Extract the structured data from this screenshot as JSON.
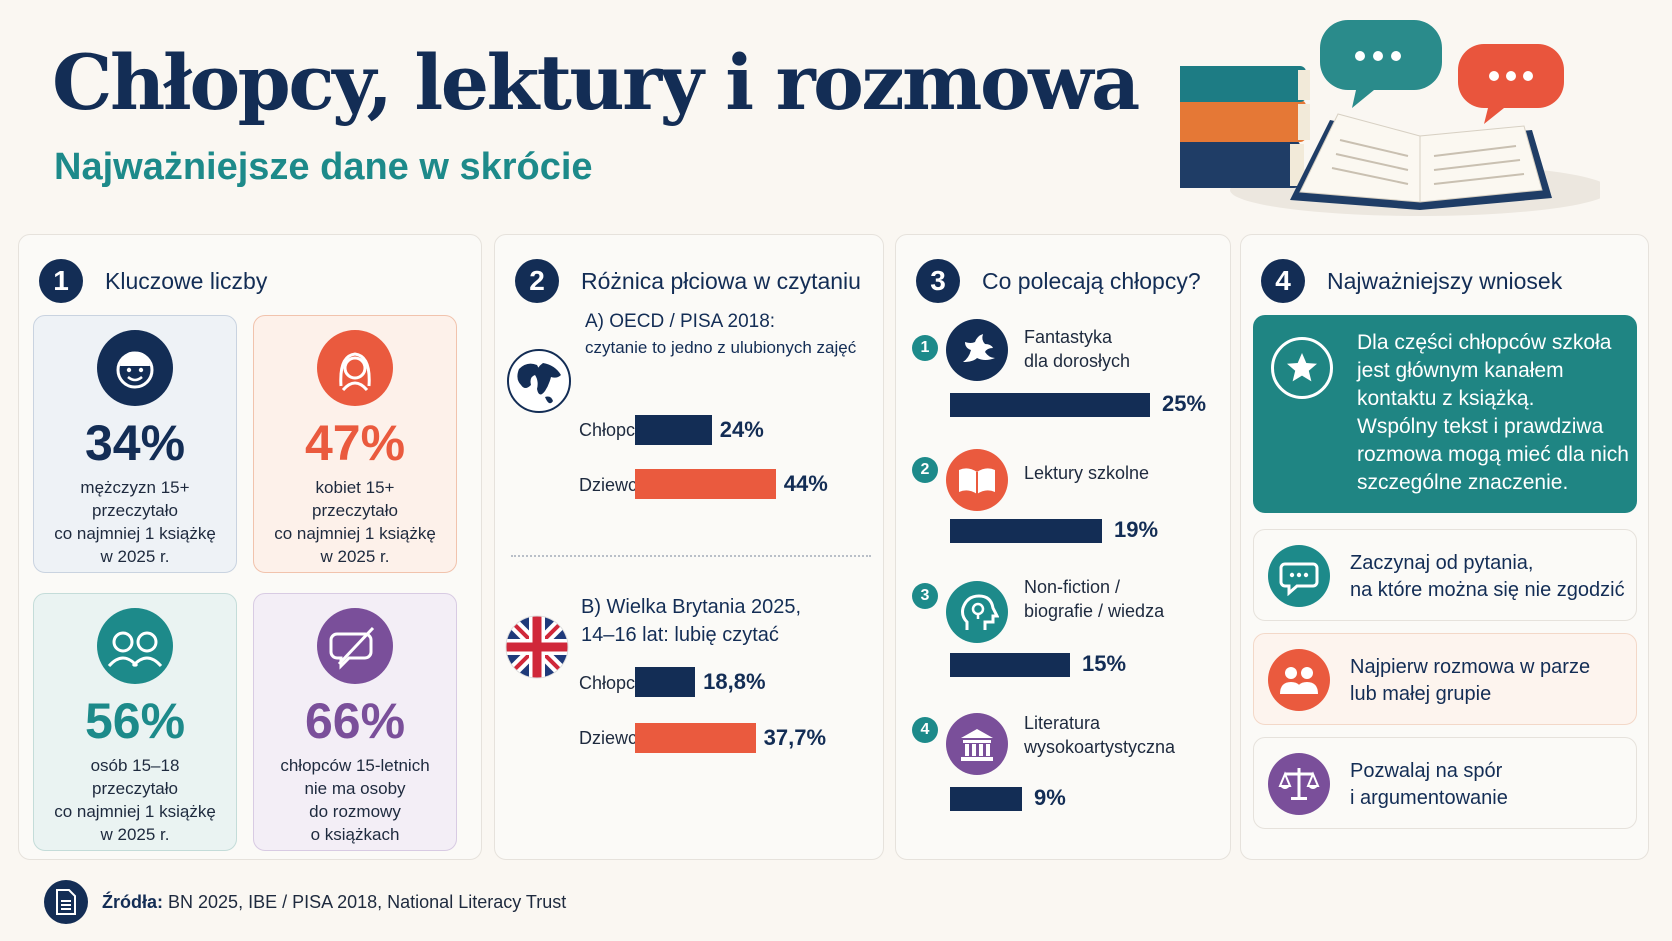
{
  "header": {
    "title": "Chłopcy, lektury i rozmowa",
    "subtitle": "Najważniejsze dane w skrócie"
  },
  "colors": {
    "navy": "#132d55",
    "teal": "#1d8a8a",
    "orange": "#ea5a3e",
    "purple": "#7a4f9a",
    "background": "#faf7f2"
  },
  "panel1": {
    "number": "1",
    "title": "Kluczowe liczby",
    "cards": [
      {
        "icon": "man-face-icon",
        "value": "34%",
        "color": "#132d55",
        "lines": [
          "mężczyzn 15+",
          "przeczytało",
          "co najmniej 1 książkę",
          "w 2025 r."
        ]
      },
      {
        "icon": "woman-face-icon",
        "value": "47%",
        "color": "#ea5a3e",
        "lines": [
          "kobiet 15+",
          "przeczytało",
          "co najmniej 1 książkę",
          "w 2025 r."
        ]
      },
      {
        "icon": "two-teens-icon",
        "value": "56%",
        "color": "#1d8a8a",
        "lines": [
          "osób 15–18",
          "przeczytało",
          "co najmniej 1 książkę",
          "w 2025 r."
        ]
      },
      {
        "icon": "no-conversation-icon",
        "value": "66%",
        "color": "#7a4f9a",
        "lines": [
          "chłopców 15-letnich",
          "nie ma osoby",
          "do rozmowy",
          "o książkach"
        ]
      }
    ]
  },
  "panel2": {
    "number": "2",
    "title": "Różnica płciowa w czytaniu",
    "sections": [
      {
        "icon": "globe-icon",
        "title_lines": [
          "A) OECD / PISA 2018:",
          "czytanie to jedno z ulubionych zajęć"
        ],
        "rows": [
          {
            "label": "Chłopcy",
            "value": 24,
            "display": "24%"
          },
          {
            "label": "Dziewczęta",
            "value": 44,
            "display": "44%"
          }
        ]
      },
      {
        "icon": "uk-flag-icon",
        "title_lines": [
          "B) Wielka Brytania 2025,",
          "14–16 lat: lubię czytać"
        ],
        "rows": [
          {
            "label": "Chłopcy",
            "value": 18.8,
            "display": "18,8%"
          },
          {
            "label": "Dziewczęta",
            "value": 37.7,
            "display": "37,7%"
          }
        ]
      }
    ]
  },
  "panel3": {
    "number": "3",
    "title": "Co polecają chłopcy?",
    "items": [
      {
        "rank": "1",
        "icon": "dragon-icon",
        "label_lines": [
          "Fantastyka",
          "dla dorosłych"
        ],
        "value": 25,
        "display": "25%"
      },
      {
        "rank": "2",
        "icon": "open-book-icon",
        "label_lines": [
          "Lektury szkolne"
        ],
        "value": 19,
        "display": "19%"
      },
      {
        "rank": "3",
        "icon": "head-lightbulb-icon",
        "label_lines": [
          "Non-fiction /",
          "biografie / wiedza"
        ],
        "value": 15,
        "display": "15%"
      },
      {
        "rank": "4",
        "icon": "classical-building-icon",
        "label_lines": [
          "Literatura",
          "wysokoartystyczna"
        ],
        "value": 9,
        "display": "9%"
      }
    ]
  },
  "panel4": {
    "number": "4",
    "title": "Najważniejszy wniosek",
    "key_lines": [
      "Dla części chłopców szkoła",
      "jest głównym kanałem",
      "kontaktu z książką.",
      "Wspólny tekst i prawdziwa",
      "rozmowa mogą mieć dla nich",
      "szczególne znaczenie."
    ],
    "tips": [
      {
        "icon": "speech-bubble-icon",
        "lines": [
          "Zaczynaj od pytania,",
          "na które można się nie zgodzić"
        ]
      },
      {
        "icon": "group-icon",
        "lines": [
          "Najpierw rozmowa w parze",
          "lub małej grupie"
        ]
      },
      {
        "icon": "scales-icon",
        "lines": [
          "Pozwalaj na spór",
          "i argumentowanie"
        ]
      }
    ]
  },
  "footer": {
    "label": "Źródła:",
    "text": "BN 2025, IBE / PISA 2018, National Literacy Trust"
  }
}
